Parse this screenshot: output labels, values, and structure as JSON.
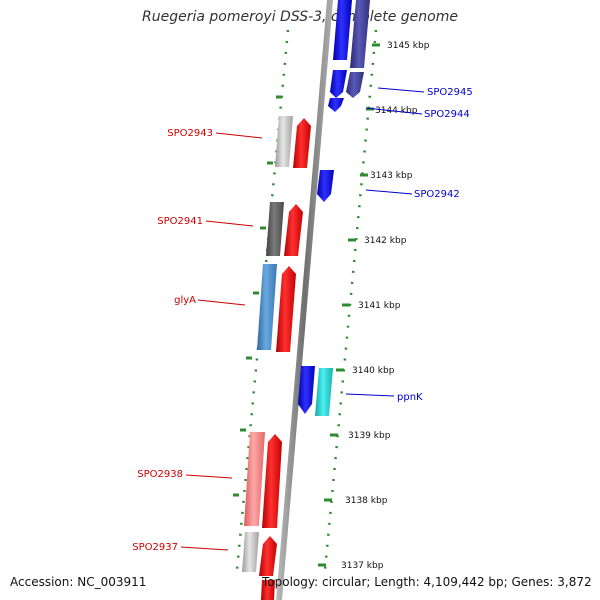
{
  "title": "Ruegeria pomeroyi DSS-3, complete genome",
  "accession": "Accession: NC_003911",
  "topology": "Topology: circular; Length: 4,109,442 bp; Genes: 3,872",
  "colors": {
    "backbone": "#8c8c8c",
    "tick": "#2e8b2e",
    "forward_gene": "#ff0000",
    "reverse_gene": "#0000ff",
    "label_forward": "#cc0000",
    "label_reverse": "#0000cc"
  },
  "scale_labels": [
    "3145 kbp",
    "3144 kbp",
    "3143 kbp",
    "3142 kbp",
    "3141 kbp",
    "3140 kbp",
    "3139 kbp",
    "3138 kbp",
    "3137 kbp"
  ],
  "gene_labels_forward": [
    "SPO2943",
    "SPO2941",
    "glyA",
    "SPO2938",
    "SPO2937"
  ],
  "gene_labels_reverse": [
    "SPO2945",
    "SPO2944",
    "SPO2942",
    "ppnK"
  ]
}
